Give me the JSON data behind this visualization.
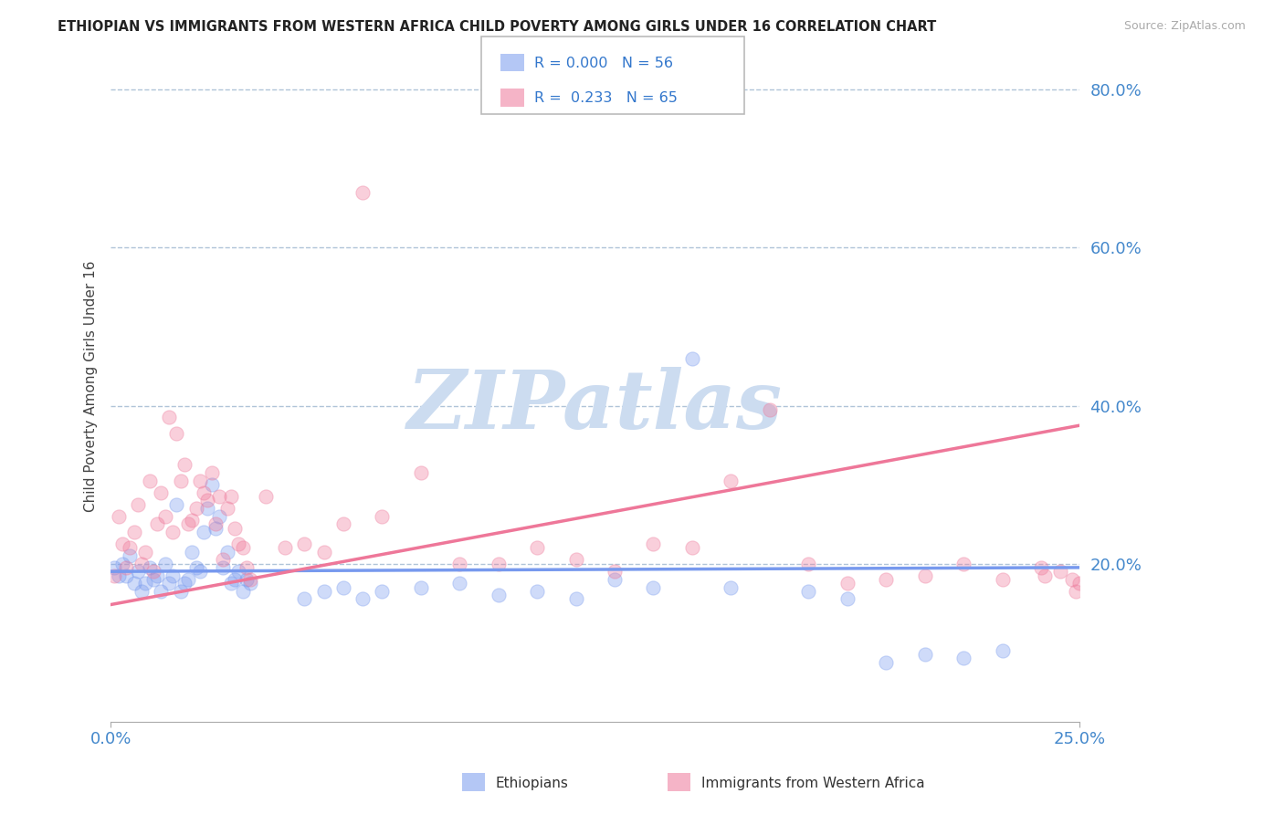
{
  "title": "ETHIOPIAN VS IMMIGRANTS FROM WESTERN AFRICA CHILD POVERTY AMONG GIRLS UNDER 16 CORRELATION CHART",
  "source": "Source: ZipAtlas.com",
  "ylabel": "Child Poverty Among Girls Under 16",
  "xlim": [
    0.0,
    0.25
  ],
  "ylim": [
    0.0,
    0.85
  ],
  "yticks": [
    0.2,
    0.4,
    0.6,
    0.8
  ],
  "ytick_labels": [
    "20.0%",
    "40.0%",
    "60.0%",
    "80.0%"
  ],
  "xticks": [
    0.0,
    0.25
  ],
  "xtick_labels": [
    "0.0%",
    "25.0%"
  ],
  "grid_color": "#b0c4d8",
  "background_color": "#ffffff",
  "watermark": "ZIPatlas",
  "watermark_color": "#ccdcf0",
  "legend_r1": "R = 0.000",
  "legend_n1": "N = 56",
  "legend_r2": "R =  0.233",
  "legend_n2": "N = 65",
  "blue_color": "#7799ee",
  "pink_color": "#ee7799",
  "blue_scatter": [
    [
      0.001,
      0.195
    ],
    [
      0.002,
      0.185
    ],
    [
      0.003,
      0.2
    ],
    [
      0.004,
      0.185
    ],
    [
      0.005,
      0.21
    ],
    [
      0.006,
      0.175
    ],
    [
      0.007,
      0.19
    ],
    [
      0.008,
      0.165
    ],
    [
      0.009,
      0.175
    ],
    [
      0.01,
      0.195
    ],
    [
      0.011,
      0.18
    ],
    [
      0.012,
      0.185
    ],
    [
      0.013,
      0.165
    ],
    [
      0.014,
      0.2
    ],
    [
      0.015,
      0.175
    ],
    [
      0.016,
      0.185
    ],
    [
      0.017,
      0.275
    ],
    [
      0.018,
      0.165
    ],
    [
      0.019,
      0.175
    ],
    [
      0.02,
      0.18
    ],
    [
      0.021,
      0.215
    ],
    [
      0.022,
      0.195
    ],
    [
      0.023,
      0.19
    ],
    [
      0.024,
      0.24
    ],
    [
      0.025,
      0.27
    ],
    [
      0.026,
      0.3
    ],
    [
      0.027,
      0.245
    ],
    [
      0.028,
      0.26
    ],
    [
      0.029,
      0.195
    ],
    [
      0.03,
      0.215
    ],
    [
      0.031,
      0.175
    ],
    [
      0.032,
      0.18
    ],
    [
      0.033,
      0.19
    ],
    [
      0.034,
      0.165
    ],
    [
      0.035,
      0.18
    ],
    [
      0.036,
      0.175
    ],
    [
      0.05,
      0.155
    ],
    [
      0.055,
      0.165
    ],
    [
      0.06,
      0.17
    ],
    [
      0.065,
      0.155
    ],
    [
      0.07,
      0.165
    ],
    [
      0.08,
      0.17
    ],
    [
      0.09,
      0.175
    ],
    [
      0.1,
      0.16
    ],
    [
      0.11,
      0.165
    ],
    [
      0.12,
      0.155
    ],
    [
      0.13,
      0.18
    ],
    [
      0.14,
      0.17
    ],
    [
      0.15,
      0.46
    ],
    [
      0.16,
      0.17
    ],
    [
      0.18,
      0.165
    ],
    [
      0.19,
      0.155
    ],
    [
      0.2,
      0.075
    ],
    [
      0.21,
      0.085
    ],
    [
      0.22,
      0.08
    ],
    [
      0.23,
      0.09
    ]
  ],
  "pink_scatter": [
    [
      0.001,
      0.185
    ],
    [
      0.002,
      0.26
    ],
    [
      0.003,
      0.225
    ],
    [
      0.004,
      0.195
    ],
    [
      0.005,
      0.22
    ],
    [
      0.006,
      0.24
    ],
    [
      0.007,
      0.275
    ],
    [
      0.008,
      0.2
    ],
    [
      0.009,
      0.215
    ],
    [
      0.01,
      0.305
    ],
    [
      0.011,
      0.19
    ],
    [
      0.012,
      0.25
    ],
    [
      0.013,
      0.29
    ],
    [
      0.014,
      0.26
    ],
    [
      0.015,
      0.385
    ],
    [
      0.016,
      0.24
    ],
    [
      0.017,
      0.365
    ],
    [
      0.018,
      0.305
    ],
    [
      0.019,
      0.325
    ],
    [
      0.02,
      0.25
    ],
    [
      0.021,
      0.255
    ],
    [
      0.022,
      0.27
    ],
    [
      0.023,
      0.305
    ],
    [
      0.024,
      0.29
    ],
    [
      0.025,
      0.28
    ],
    [
      0.026,
      0.315
    ],
    [
      0.027,
      0.25
    ],
    [
      0.028,
      0.285
    ],
    [
      0.029,
      0.205
    ],
    [
      0.03,
      0.27
    ],
    [
      0.031,
      0.285
    ],
    [
      0.032,
      0.245
    ],
    [
      0.033,
      0.225
    ],
    [
      0.034,
      0.22
    ],
    [
      0.035,
      0.195
    ],
    [
      0.036,
      0.18
    ],
    [
      0.04,
      0.285
    ],
    [
      0.045,
      0.22
    ],
    [
      0.05,
      0.225
    ],
    [
      0.055,
      0.215
    ],
    [
      0.06,
      0.25
    ],
    [
      0.065,
      0.67
    ],
    [
      0.07,
      0.26
    ],
    [
      0.08,
      0.315
    ],
    [
      0.09,
      0.2
    ],
    [
      0.1,
      0.2
    ],
    [
      0.11,
      0.22
    ],
    [
      0.12,
      0.205
    ],
    [
      0.13,
      0.19
    ],
    [
      0.14,
      0.225
    ],
    [
      0.15,
      0.22
    ],
    [
      0.16,
      0.305
    ],
    [
      0.17,
      0.395
    ],
    [
      0.18,
      0.2
    ],
    [
      0.19,
      0.175
    ],
    [
      0.2,
      0.18
    ],
    [
      0.21,
      0.185
    ],
    [
      0.22,
      0.2
    ],
    [
      0.23,
      0.18
    ],
    [
      0.24,
      0.195
    ],
    [
      0.245,
      0.19
    ],
    [
      0.248,
      0.18
    ],
    [
      0.249,
      0.165
    ],
    [
      0.25,
      0.175
    ],
    [
      0.241,
      0.185
    ]
  ],
  "blue_trend_x": [
    0.0,
    0.25
  ],
  "blue_trend_y": [
    0.19,
    0.195
  ],
  "pink_trend_x": [
    0.0,
    0.25
  ],
  "pink_trend_y": [
    0.148,
    0.375
  ]
}
